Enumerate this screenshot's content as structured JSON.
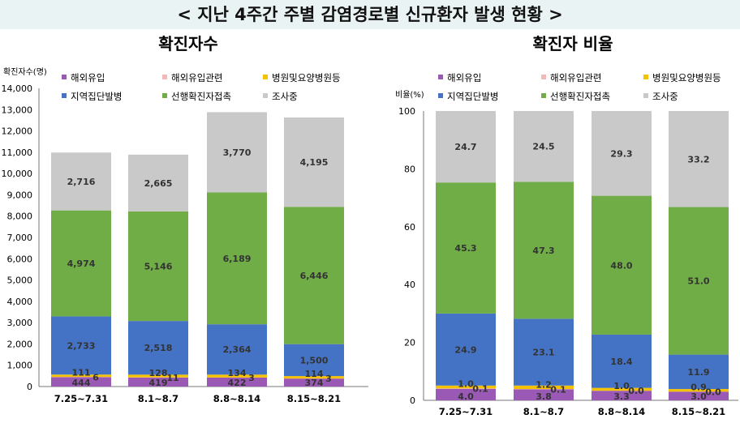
{
  "title": "< 지난 4주간 주별 감염경로별 신규환자 발생 현황 >",
  "chart_data": [
    {
      "type": "bar",
      "stacked": true,
      "title": "확진자수",
      "ylabel": "확진자수(명)",
      "ylim": [
        0,
        14000
      ],
      "yticks": [
        "0",
        "1,000",
        "2,000",
        "3,000",
        "4,000",
        "5,000",
        "6,000",
        "7,000",
        "8,000",
        "9,000",
        "10,000",
        "11,000",
        "12,000",
        "13,000",
        "14,000"
      ],
      "categories": [
        "7.25~7.31",
        "8.1~8.7",
        "8.8~8.14",
        "8.15~8.21"
      ],
      "series": [
        {
          "name": "해외유입",
          "color": "#9b59b6",
          "values": [
            444,
            419,
            422,
            374
          ],
          "labels": [
            "444",
            "419",
            "422",
            "374"
          ]
        },
        {
          "name": "해외유입관련",
          "color": "#f4b8b8",
          "values": [
            6,
            11,
            3,
            3
          ],
          "labels": [
            "6",
            "11",
            "3",
            "3"
          ]
        },
        {
          "name": "병원및요양병원등",
          "color": "#f5c200",
          "values": [
            111,
            128,
            134,
            114
          ],
          "labels": [
            "111",
            "128",
            "134",
            "114"
          ]
        },
        {
          "name": "지역집단발병",
          "color": "#4472c4",
          "values": [
            2733,
            2518,
            2364,
            1500
          ],
          "labels": [
            "2,733",
            "2,518",
            "2,364",
            "1,500"
          ]
        },
        {
          "name": "선행확진자접촉",
          "color": "#70ad47",
          "values": [
            4974,
            5146,
            6189,
            6446
          ],
          "labels": [
            "4,974",
            "5,146",
            "6,189",
            "6,446"
          ]
        },
        {
          "name": "조사중",
          "color": "#c9c9c9",
          "values": [
            2716,
            2665,
            3770,
            4195
          ],
          "labels": [
            "2,716",
            "2,665",
            "3,770",
            "4,195"
          ]
        }
      ],
      "legend": "top"
    },
    {
      "type": "bar",
      "stacked": true,
      "title": "확진자 비율",
      "ylabel": "비율(%)",
      "ylim": [
        0,
        100
      ],
      "yticks": [
        "0",
        "20",
        "40",
        "60",
        "80",
        "100"
      ],
      "categories": [
        "7.25~7.31",
        "8.1~8.7",
        "8.8~8.14",
        "8.15~8.21"
      ],
      "series": [
        {
          "name": "해외유입",
          "color": "#9b59b6",
          "values": [
            4.0,
            3.8,
            3.3,
            3.0
          ],
          "labels": [
            "4.0",
            "3.8",
            "3.3",
            "3.0"
          ]
        },
        {
          "name": "해외유입관련",
          "color": "#f4b8b8",
          "values": [
            0.1,
            0.1,
            0.0,
            0.0
          ],
          "labels": [
            "0.1",
            "0.1",
            "0.0",
            "0.0"
          ]
        },
        {
          "name": "병원및요양병원등",
          "color": "#f5c200",
          "values": [
            1.0,
            1.2,
            1.0,
            0.9
          ],
          "labels": [
            "1.0",
            "1.2",
            "1.0",
            "0.9"
          ]
        },
        {
          "name": "지역집단발병",
          "color": "#4472c4",
          "values": [
            24.9,
            23.1,
            18.4,
            11.9
          ],
          "labels": [
            "24.9",
            "23.1",
            "18.4",
            "11.9"
          ]
        },
        {
          "name": "선행확진자접촉",
          "color": "#70ad47",
          "values": [
            45.3,
            47.3,
            48.0,
            51.0
          ],
          "labels": [
            "45.3",
            "47.3",
            "48.0",
            "51.0"
          ]
        },
        {
          "name": "조사중",
          "color": "#c9c9c9",
          "values": [
            24.7,
            24.5,
            29.3,
            33.2
          ],
          "labels": [
            "24.7",
            "24.5",
            "29.3",
            "33.2"
          ]
        }
      ],
      "legend": "top"
    }
  ]
}
